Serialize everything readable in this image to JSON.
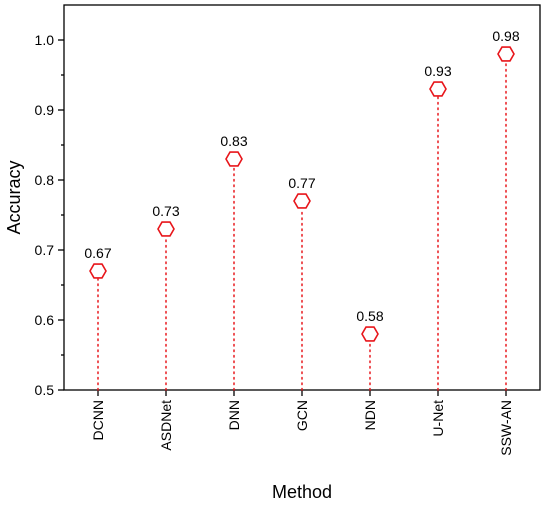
{
  "chart_data": {
    "type": "scatter",
    "style": "lollipop",
    "marker": "hexagon",
    "marker_color": "#e8161b",
    "stem_style": "dotted",
    "categories": [
      "DCNN",
      "ASDNet",
      "DNN",
      "GCN",
      "NDN",
      "U-Net",
      "SSW-AN"
    ],
    "values": [
      0.67,
      0.73,
      0.83,
      0.77,
      0.58,
      0.93,
      0.98
    ],
    "data_labels": [
      "0.67",
      "0.73",
      "0.83",
      "0.77",
      "0.58",
      "0.93",
      "0.98"
    ],
    "xlabel": "Method",
    "ylabel": "Accuracy",
    "ylim": [
      0.5,
      1.05
    ],
    "yticks": [
      0.5,
      0.6,
      0.7,
      0.8,
      0.9,
      1.0
    ],
    "ytick_labels": [
      "0.5",
      "0.6",
      "0.7",
      "0.8",
      "0.9",
      "1.0"
    ],
    "grid": false,
    "legend": "none"
  }
}
